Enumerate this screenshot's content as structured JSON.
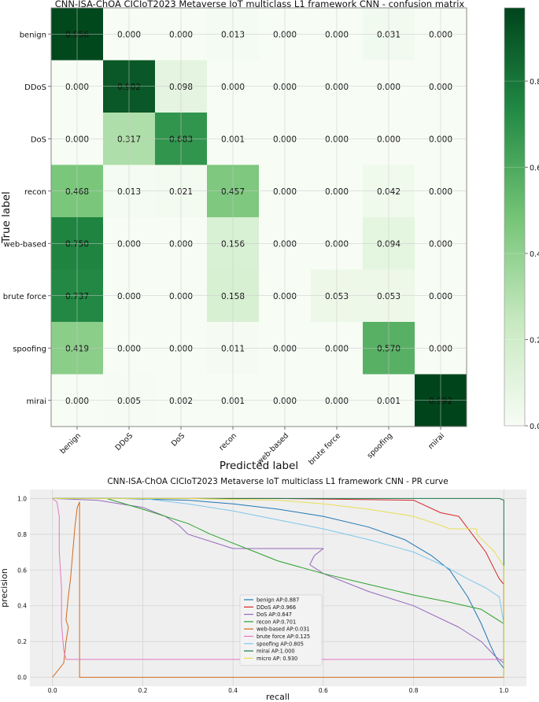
{
  "chart_data": [
    {
      "type": "heatmap",
      "title": "CNN-ISA-ChOA CICIoT2023 Metaverse IoT multiclass L1 framework CNN -  confusion matrix",
      "xlabel": "Predicted label",
      "ylabel": "True label",
      "labels": [
        "benign",
        "DDoS",
        "DoS",
        "recon",
        "web-based",
        "brute force",
        "spoofing",
        "mirai"
      ],
      "matrix": [
        [
          "0.956",
          "0.000",
          "0.000",
          "0.013",
          "0.000",
          "0.000",
          "0.031",
          "0.000"
        ],
        [
          "0.000",
          "0.902",
          "0.098",
          "0.000",
          "0.000",
          "0.000",
          "0.000",
          "0.000"
        ],
        [
          "0.000",
          "0.317",
          "0.683",
          "0.001",
          "0.000",
          "0.000",
          "0.000",
          "0.000"
        ],
        [
          "0.468",
          "0.013",
          "0.021",
          "0.457",
          "0.000",
          "0.000",
          "0.042",
          "0.000"
        ],
        [
          "0.750",
          "0.000",
          "0.000",
          "0.156",
          "0.000",
          "0.000",
          "0.094",
          "0.000"
        ],
        [
          "0.737",
          "0.000",
          "0.000",
          "0.158",
          "0.000",
          "0.053",
          "0.053",
          "0.000"
        ],
        [
          "0.419",
          "0.000",
          "0.000",
          "0.011",
          "0.000",
          "0.000",
          "0.570",
          "0.000"
        ],
        [
          "0.000",
          "0.005",
          "0.002",
          "0.001",
          "0.000",
          "0.000",
          "0.001",
          "0.992"
        ]
      ],
      "colorbar": {
        "range": [
          0.0,
          0.97
        ],
        "ticks": [
          "0.0",
          "0.2",
          "0.4",
          "0.6",
          "0.8"
        ]
      },
      "colors": {
        "low": "#f7fcf5",
        "mid": "#74c476",
        "high": "#00441b"
      }
    },
    {
      "type": "line",
      "title": "CNN-ISA-ChOA CICIoT2023 Metaverse IoT multiclass L1 framework CNN -  PR curve",
      "xlabel": "recall",
      "ylabel": "precision",
      "xlim": [
        -0.05,
        1.05
      ],
      "ylim": [
        -0.05,
        1.05
      ],
      "xticks": [
        "0.0",
        "0.2",
        "0.4",
        "0.6",
        "0.8",
        "1.0"
      ],
      "yticks": [
        "0.0",
        "0.2",
        "0.4",
        "0.6",
        "0.8",
        "1.0"
      ],
      "legend_position": "bottom-center",
      "series": [
        {
          "name": "benign AP:0.887",
          "color": "#1f77b4",
          "points": [
            [
              0,
              1
            ],
            [
              0.15,
              1
            ],
            [
              0.3,
              0.99
            ],
            [
              0.4,
              0.97
            ],
            [
              0.5,
              0.94
            ],
            [
              0.6,
              0.9
            ],
            [
              0.7,
              0.84
            ],
            [
              0.78,
              0.77
            ],
            [
              0.84,
              0.68
            ],
            [
              0.88,
              0.6
            ],
            [
              0.92,
              0.45
            ],
            [
              0.95,
              0.3
            ],
            [
              0.97,
              0.18
            ],
            [
              0.985,
              0.1
            ],
            [
              1.0,
              0.05
            ]
          ]
        },
        {
          "name": "DDoS AP:0.966",
          "color": "#d62728",
          "points": [
            [
              0,
              1
            ],
            [
              0.5,
              1
            ],
            [
              0.8,
              0.99
            ],
            [
              0.86,
              0.92
            ],
            [
              0.9,
              0.9
            ],
            [
              0.93,
              0.8
            ],
            [
              0.96,
              0.7
            ],
            [
              0.98,
              0.6
            ],
            [
              0.99,
              0.55
            ],
            [
              1.0,
              0.52
            ],
            [
              1.0,
              0.2
            ]
          ]
        },
        {
          "name": "DoS AP:0.647",
          "color": "#9467bd",
          "points": [
            [
              0,
              1
            ],
            [
              0.1,
              0.99
            ],
            [
              0.2,
              0.95
            ],
            [
              0.25,
              0.9
            ],
            [
              0.28,
              0.85
            ],
            [
              0.3,
              0.8
            ],
            [
              0.4,
              0.72
            ],
            [
              0.46,
              0.72
            ],
            [
              0.6,
              0.72
            ],
            [
              0.58,
              0.68
            ],
            [
              0.57,
              0.63
            ],
            [
              0.6,
              0.58
            ],
            [
              0.7,
              0.48
            ],
            [
              0.8,
              0.4
            ],
            [
              0.9,
              0.28
            ],
            [
              0.95,
              0.2
            ],
            [
              0.98,
              0.12
            ],
            [
              1.0,
              0.08
            ]
          ]
        },
        {
          "name": "recon AP:0.701",
          "color": "#2ca02c",
          "points": [
            [
              0,
              1
            ],
            [
              0.12,
              1
            ],
            [
              0.2,
              0.94
            ],
            [
              0.3,
              0.86
            ],
            [
              0.35,
              0.8
            ],
            [
              0.4,
              0.75
            ],
            [
              0.45,
              0.7
            ],
            [
              0.5,
              0.65
            ],
            [
              0.6,
              0.58
            ],
            [
              0.7,
              0.52
            ],
            [
              0.8,
              0.46
            ],
            [
              0.88,
              0.42
            ],
            [
              0.95,
              0.38
            ],
            [
              1.0,
              0.3
            ]
          ]
        },
        {
          "name": "web-based AP:0.031",
          "color": "#d2691e",
          "points": [
            [
              0,
              0
            ],
            [
              0.025,
              0.08
            ],
            [
              0.03,
              0.2
            ],
            [
              0.035,
              0.28
            ],
            [
              0.03,
              0.32
            ],
            [
              0.035,
              0.45
            ],
            [
              0.04,
              0.55
            ],
            [
              0.045,
              0.7
            ],
            [
              0.05,
              0.85
            ],
            [
              0.055,
              0.95
            ],
            [
              0.06,
              0.98
            ],
            [
              0.06,
              0.0
            ],
            [
              1.0,
              0.0
            ]
          ]
        },
        {
          "name": "brute force AP:0.125",
          "color": "#e377c2",
          "points": [
            [
              0,
              1
            ],
            [
              0.01,
              0.98
            ],
            [
              0.015,
              0.9
            ],
            [
              0.015,
              0.7
            ],
            [
              0.02,
              0.5
            ],
            [
              0.02,
              0.3
            ],
            [
              0.025,
              0.15
            ],
            [
              0.03,
              0.1
            ],
            [
              0.4,
              0.1
            ],
            [
              1.0,
              0.1
            ],
            [
              1.0,
              0.05
            ]
          ]
        },
        {
          "name": "spoofing AP:0.805",
          "color": "#7fc6ec",
          "points": [
            [
              0,
              1
            ],
            [
              0.2,
              1
            ],
            [
              0.3,
              0.97
            ],
            [
              0.4,
              0.93
            ],
            [
              0.5,
              0.88
            ],
            [
              0.6,
              0.83
            ],
            [
              0.7,
              0.77
            ],
            [
              0.8,
              0.7
            ],
            [
              0.87,
              0.62
            ],
            [
              0.92,
              0.55
            ],
            [
              0.96,
              0.5
            ],
            [
              0.99,
              0.45
            ],
            [
              1.0,
              0.3
            ],
            [
              1.0,
              0.05
            ]
          ]
        },
        {
          "name": "mirai AP:1.000",
          "color": "#1b7a4a",
          "points": [
            [
              0,
              1
            ],
            [
              0.99,
              1
            ],
            [
              1.0,
              0.99
            ],
            [
              1.0,
              0.0
            ]
          ]
        },
        {
          "name": "micro AP: 0.930",
          "color": "#e8df55",
          "points": [
            [
              0,
              1
            ],
            [
              0.3,
              1
            ],
            [
              0.5,
              0.99
            ],
            [
              0.6,
              0.97
            ],
            [
              0.7,
              0.94
            ],
            [
              0.8,
              0.9
            ],
            [
              0.86,
              0.85
            ],
            [
              0.88,
              0.83
            ],
            [
              0.94,
              0.83
            ],
            [
              0.94,
              0.8
            ],
            [
              0.96,
              0.75
            ],
            [
              0.98,
              0.7
            ],
            [
              1.0,
              0.62
            ],
            [
              1.0,
              0.0
            ]
          ]
        }
      ]
    }
  ]
}
